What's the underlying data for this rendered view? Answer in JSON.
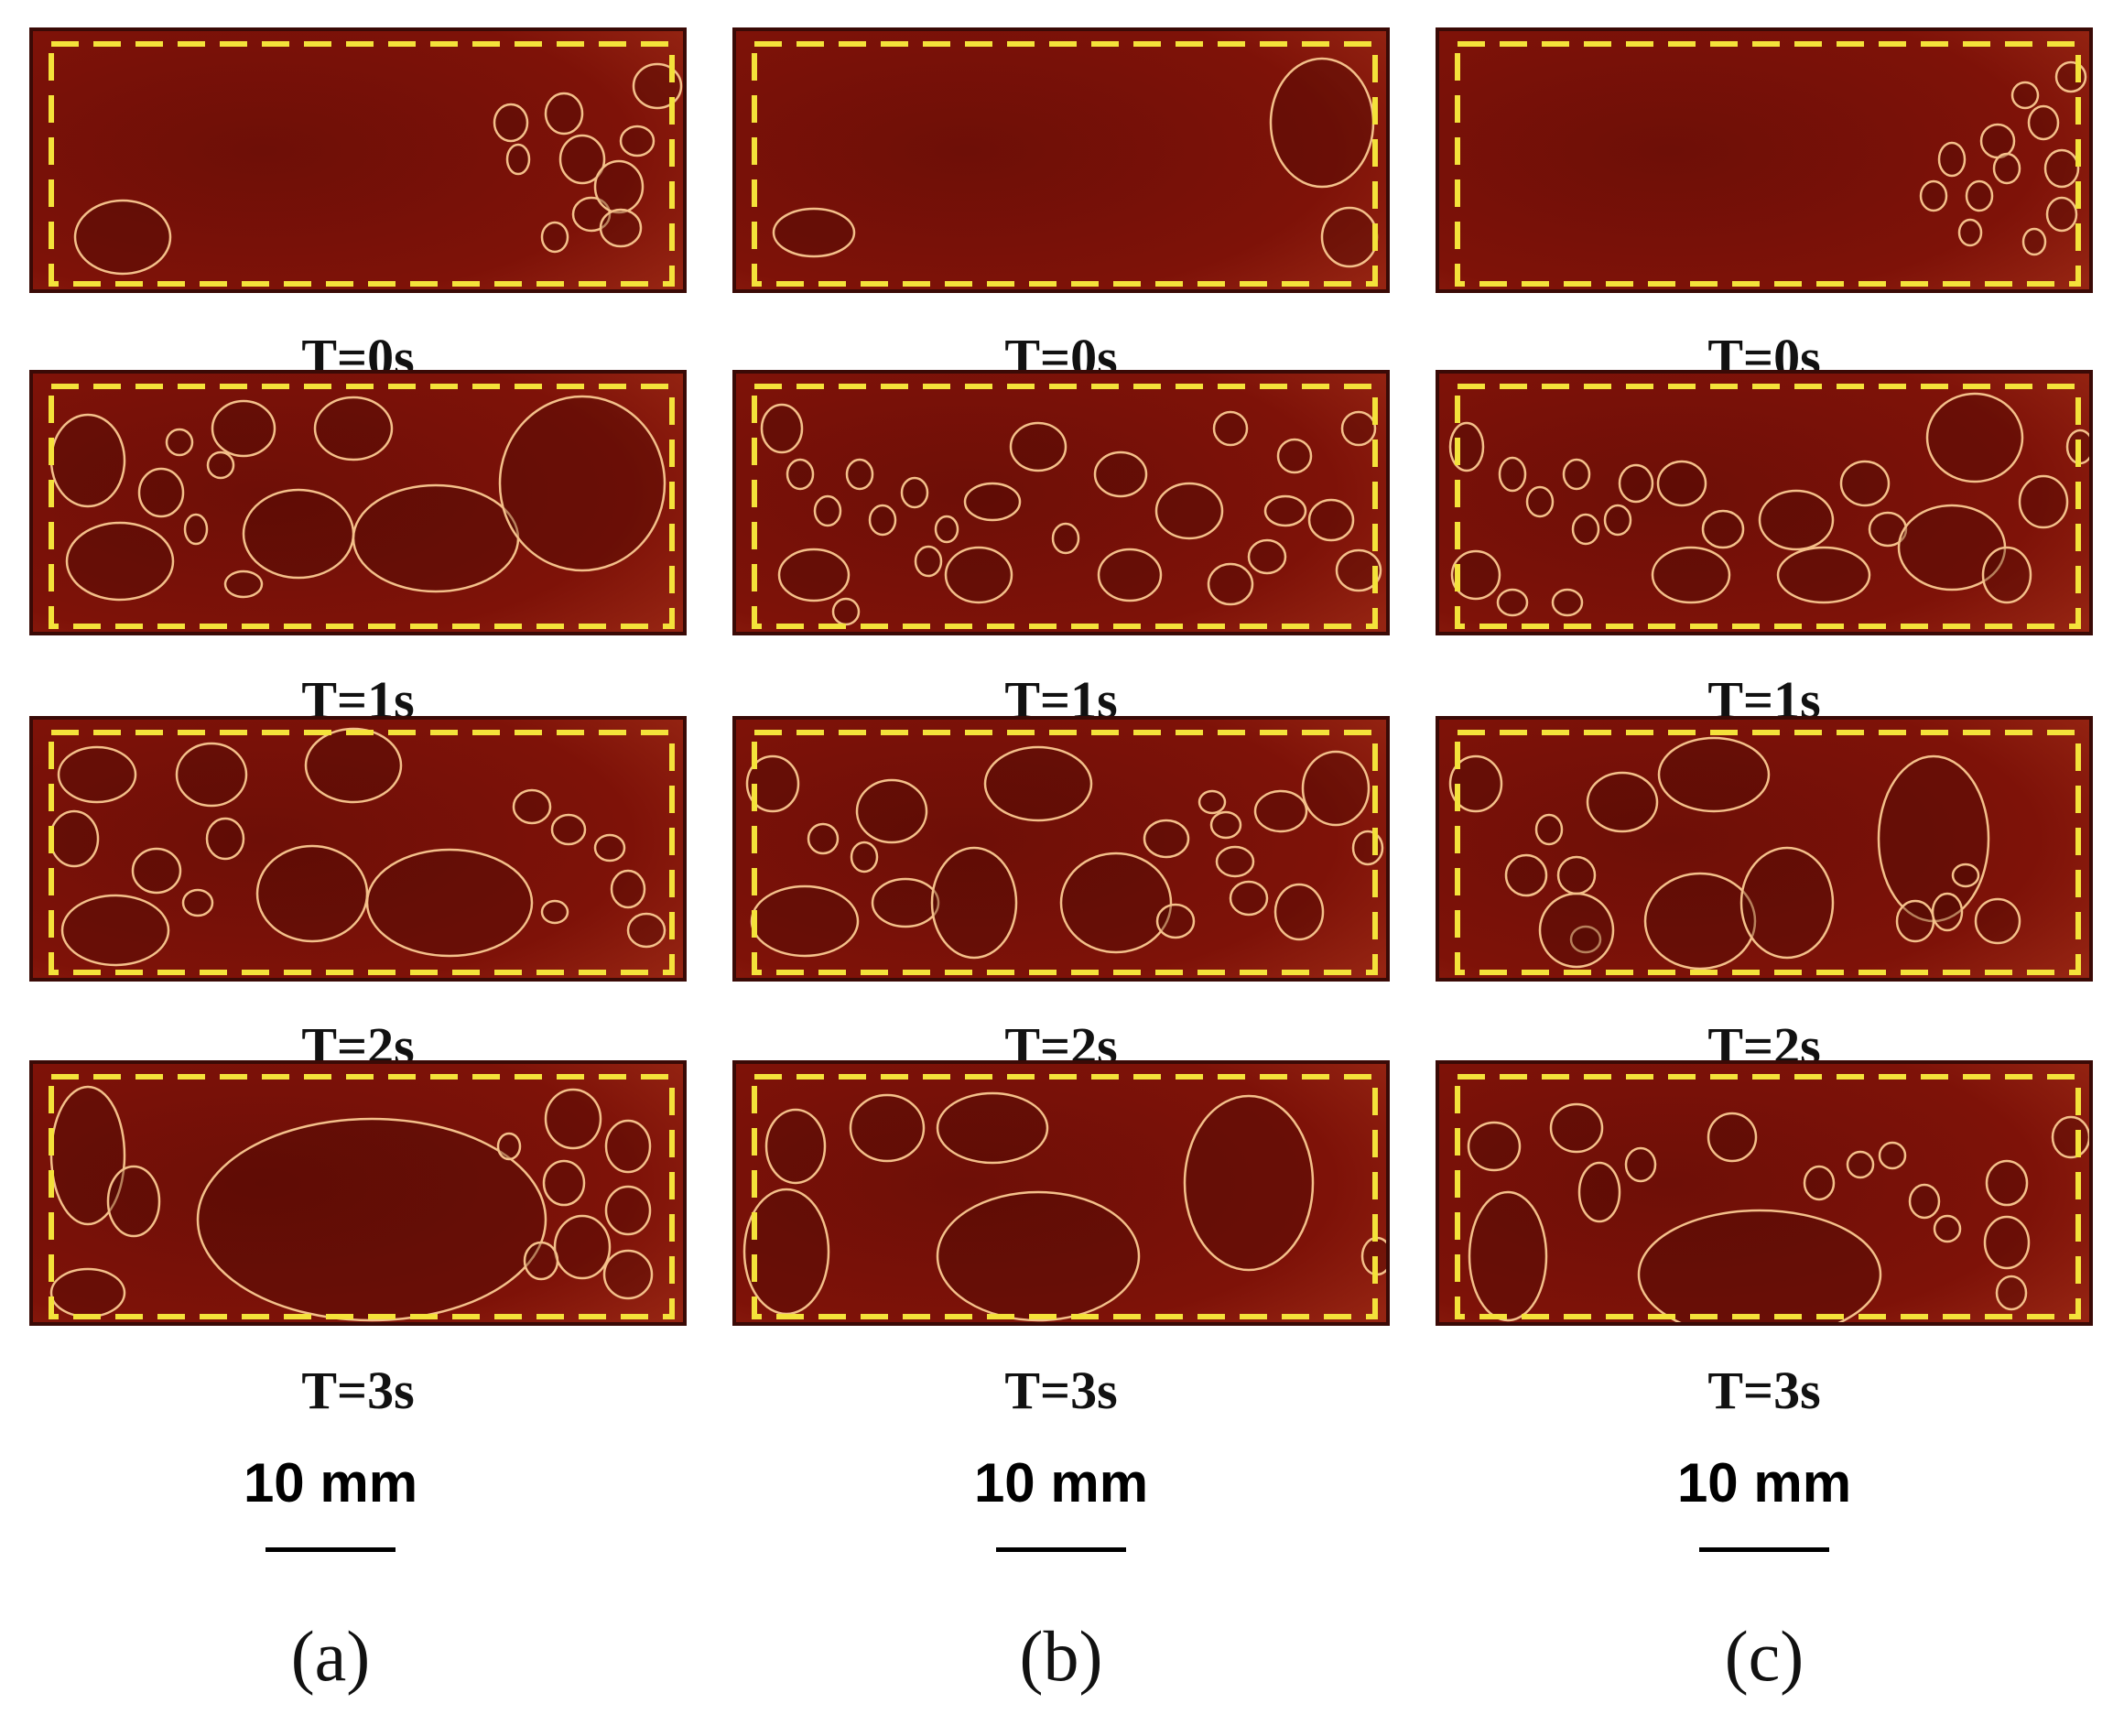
{
  "columns": [
    {
      "label": "(a)",
      "scale": "10 mm",
      "frames": [
        "T=0s",
        "T=1s",
        "T=2s",
        "T=3s"
      ]
    },
    {
      "label": "(b)",
      "scale": "10 mm",
      "frames": [
        "T=0s",
        "T=1s",
        "T=2s",
        "T=3s"
      ]
    },
    {
      "label": "(c)",
      "scale": "10 mm",
      "frames": [
        "T=0s",
        "T=1s",
        "T=2s",
        "T=3s"
      ]
    }
  ],
  "colors": {
    "background_fluid": "#7e1208",
    "bubble_outline": "#f4c08a",
    "dashed_frame": "#f4e23a",
    "panel_border": "#3a0a06"
  }
}
